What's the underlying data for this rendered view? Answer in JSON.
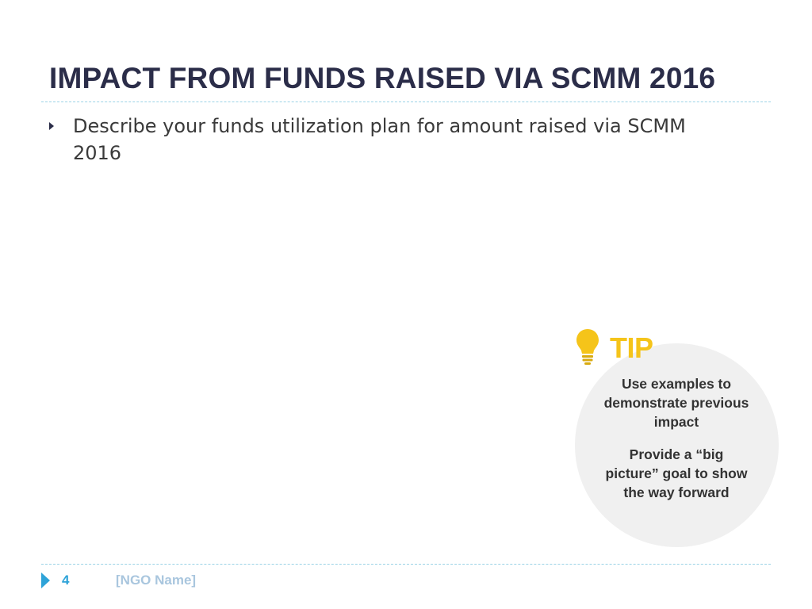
{
  "slide": {
    "title": "IMPACT FROM FUNDS RAISED VIA SCMM 2016",
    "bullets": [
      {
        "text": "Describe your funds utilization plan for amount raised via SCMM 2016"
      }
    ]
  },
  "tip": {
    "icon": "lightbulb-icon",
    "label": "TIP",
    "lines": [
      "Use examples to demonstrate previous impact",
      "Provide a “big picture” goal to show the way forward"
    ],
    "accent_color": "#f5c41a",
    "circle_color": "#f0f0f0"
  },
  "footer": {
    "arrow_icon": "play-arrow-icon",
    "page_number": "4",
    "org_name": "[NGO Name]"
  },
  "colors": {
    "title": "#2b2d49",
    "rule": "#9bd3e6",
    "footer_accent": "#2ea3d8",
    "placeholder": "#a9c6de"
  }
}
